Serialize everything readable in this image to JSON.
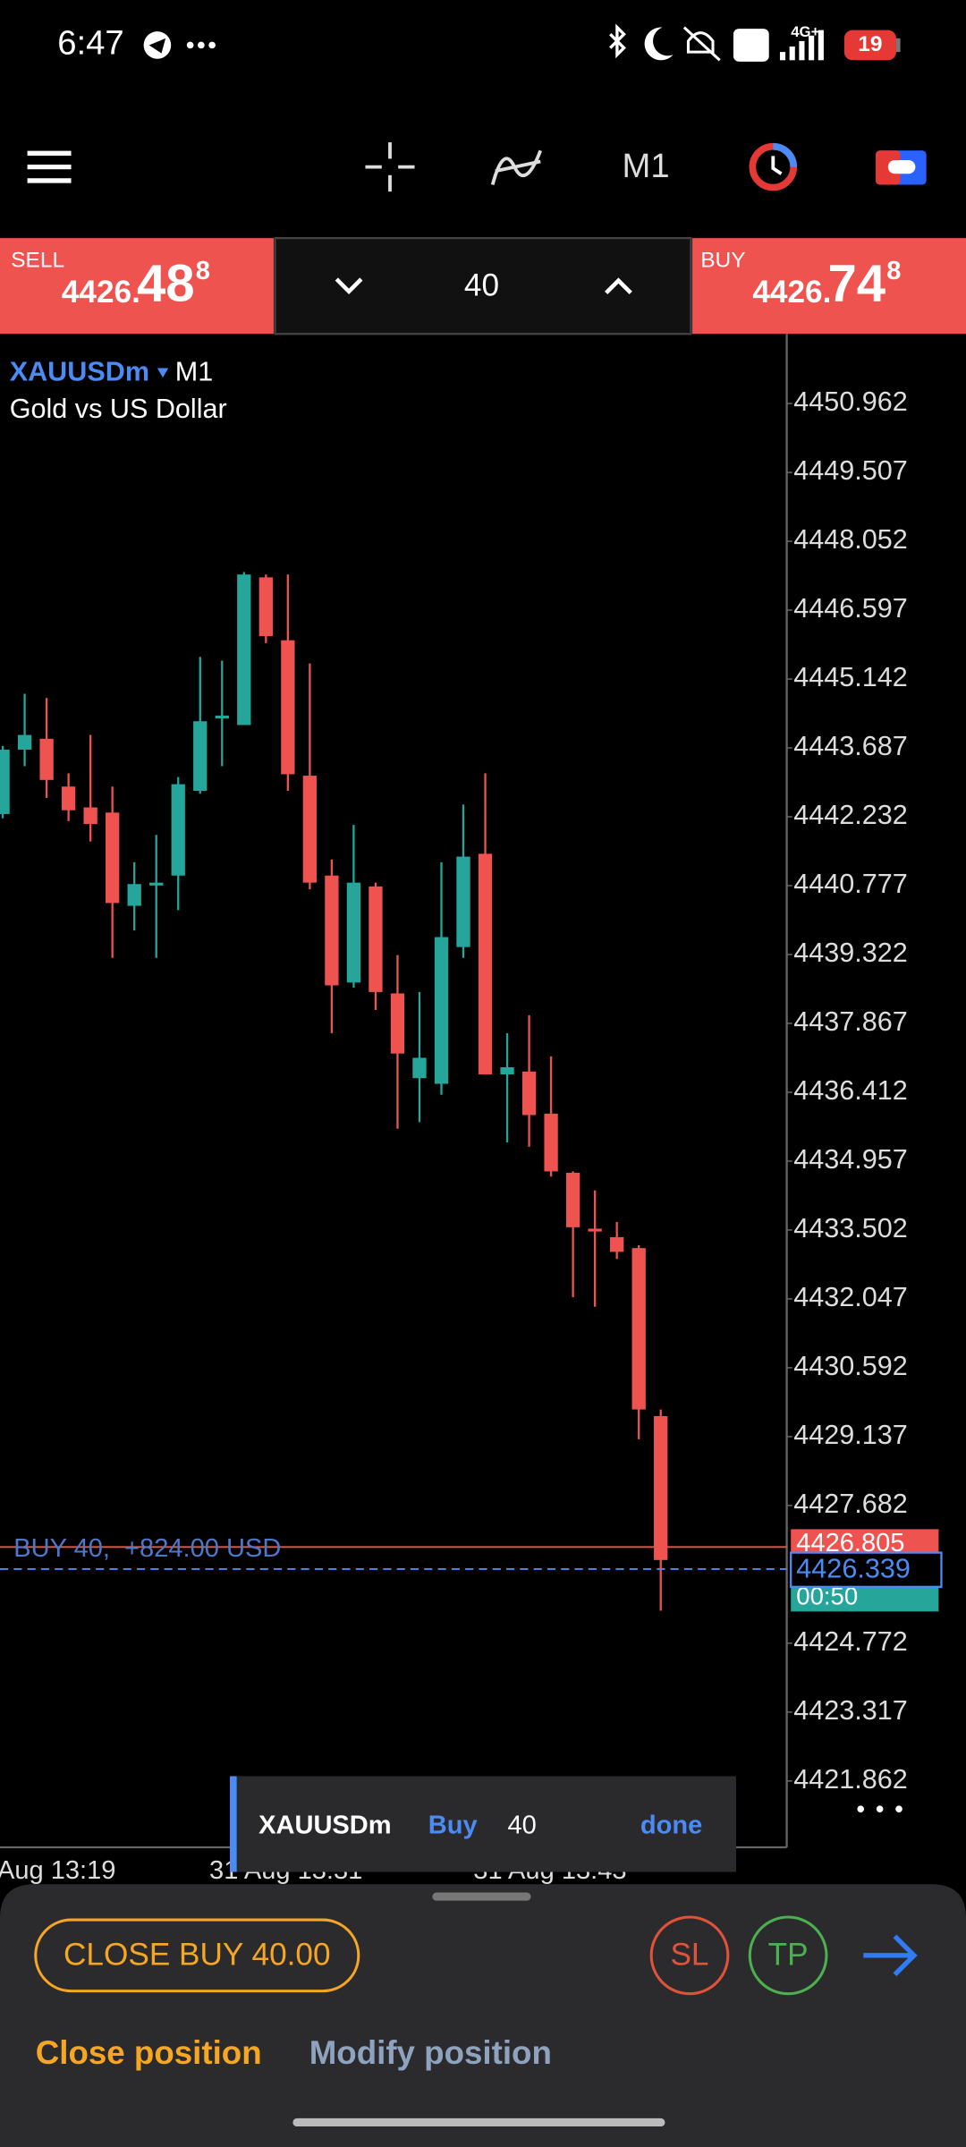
{
  "status_bar": {
    "time": "6:47",
    "network": "4G+",
    "battery": "19"
  },
  "toolbar": {
    "timeframe": "M1"
  },
  "trade_panel": {
    "sell_label": "SELL",
    "sell_price_head": "4426.",
    "sell_price_big": "48",
    "sell_price_sup": "8",
    "volume": "40",
    "buy_label": "BUY",
    "buy_price_head": "4426.",
    "buy_price_big": "74",
    "buy_price_sup": "8"
  },
  "chart_data": {
    "type": "candlestick",
    "symbol": "XAUUSDm",
    "timeframe": "M1",
    "description": "Gold vs US Dollar",
    "up_color": "#26a69a",
    "down_color": "#ef5350",
    "open": [
      4442.29,
      4443.65,
      4443.88,
      4442.87,
      4442.43,
      4442.32,
      4440.35,
      4440.78,
      4440.99,
      4442.78,
      4444.31,
      4444.17,
      4447.29,
      4445.96,
      4443.1,
      4440.99,
      4438.73,
      4440.76,
      4438.5,
      4436.71,
      4436.59,
      4439.48,
      4441.45,
      4436.79,
      4436.85,
      4435.96,
      4434.71,
      4433.53,
      4433.35,
      4433.12,
      4429.57
    ],
    "high": [
      4443.73,
      4444.83,
      4444.74,
      4443.15,
      4443.96,
      4442.87,
      4441.27,
      4441.85,
      4443.07,
      4445.61,
      4445.53,
      4447.4,
      4447.35,
      4447.35,
      4445.47,
      4441.33,
      4442.06,
      4440.84,
      4439.31,
      4438.53,
      4441.27,
      4442.49,
      4443.15,
      4437.66,
      4438.04,
      4437.17,
      4434.74,
      4434.34,
      4433.67,
      4433.18,
      4429.71
    ],
    "low": [
      4442.2,
      4443.3,
      4442.63,
      4442.14,
      4441.71,
      4439.25,
      4439.83,
      4439.25,
      4440.26,
      4442.72,
      4443.3,
      4444.17,
      4445.9,
      4442.78,
      4440.7,
      4437.66,
      4438.62,
      4438.15,
      4435.64,
      4435.78,
      4436.36,
      4439.25,
      4436.79,
      4435.35,
      4435.26,
      4434.63,
      4432.08,
      4431.88,
      4432.89,
      4429.08,
      4425.46
    ],
    "close": [
      4443.65,
      4443.96,
      4443.01,
      4442.37,
      4442.08,
      4440.41,
      4440.81,
      4440.84,
      4442.92,
      4444.25,
      4444.37,
      4447.35,
      4446.05,
      4443.13,
      4440.84,
      4438.67,
      4440.84,
      4438.53,
      4437.23,
      4437.14,
      4439.69,
      4441.39,
      4436.79,
      4436.94,
      4435.93,
      4434.74,
      4433.56,
      4433.47,
      4433.04,
      4429.71,
      4426.53
    ],
    "ylim": [
      4420.46,
      4452.26
    ],
    "yticks": [
      4450.962,
      4449.507,
      4448.052,
      4446.597,
      4445.142,
      4443.687,
      4442.232,
      4440.777,
      4439.322,
      4437.867,
      4436.412,
      4434.957,
      4433.502,
      4432.047,
      4430.592,
      4429.137,
      4427.682,
      4424.772,
      4423.317,
      4421.862
    ],
    "x_labels": [
      "Aug 13:19",
      "31 Aug 13:31",
      "31 Aug 13:43"
    ],
    "position_label": "BUY 40,  +824.00 USD",
    "position_price": 4426.805,
    "current_price": 4426.339,
    "bar_timer": "00:50"
  },
  "order_toast": {
    "symbol": "XAUUSDm",
    "side": "Buy",
    "volume": "40",
    "action": "done"
  },
  "bottom_sheet": {
    "close_button": "CLOSE BUY 40.00",
    "sl": "SL",
    "tp": "TP",
    "tabs": [
      "Close position",
      "Modify position"
    ]
  }
}
